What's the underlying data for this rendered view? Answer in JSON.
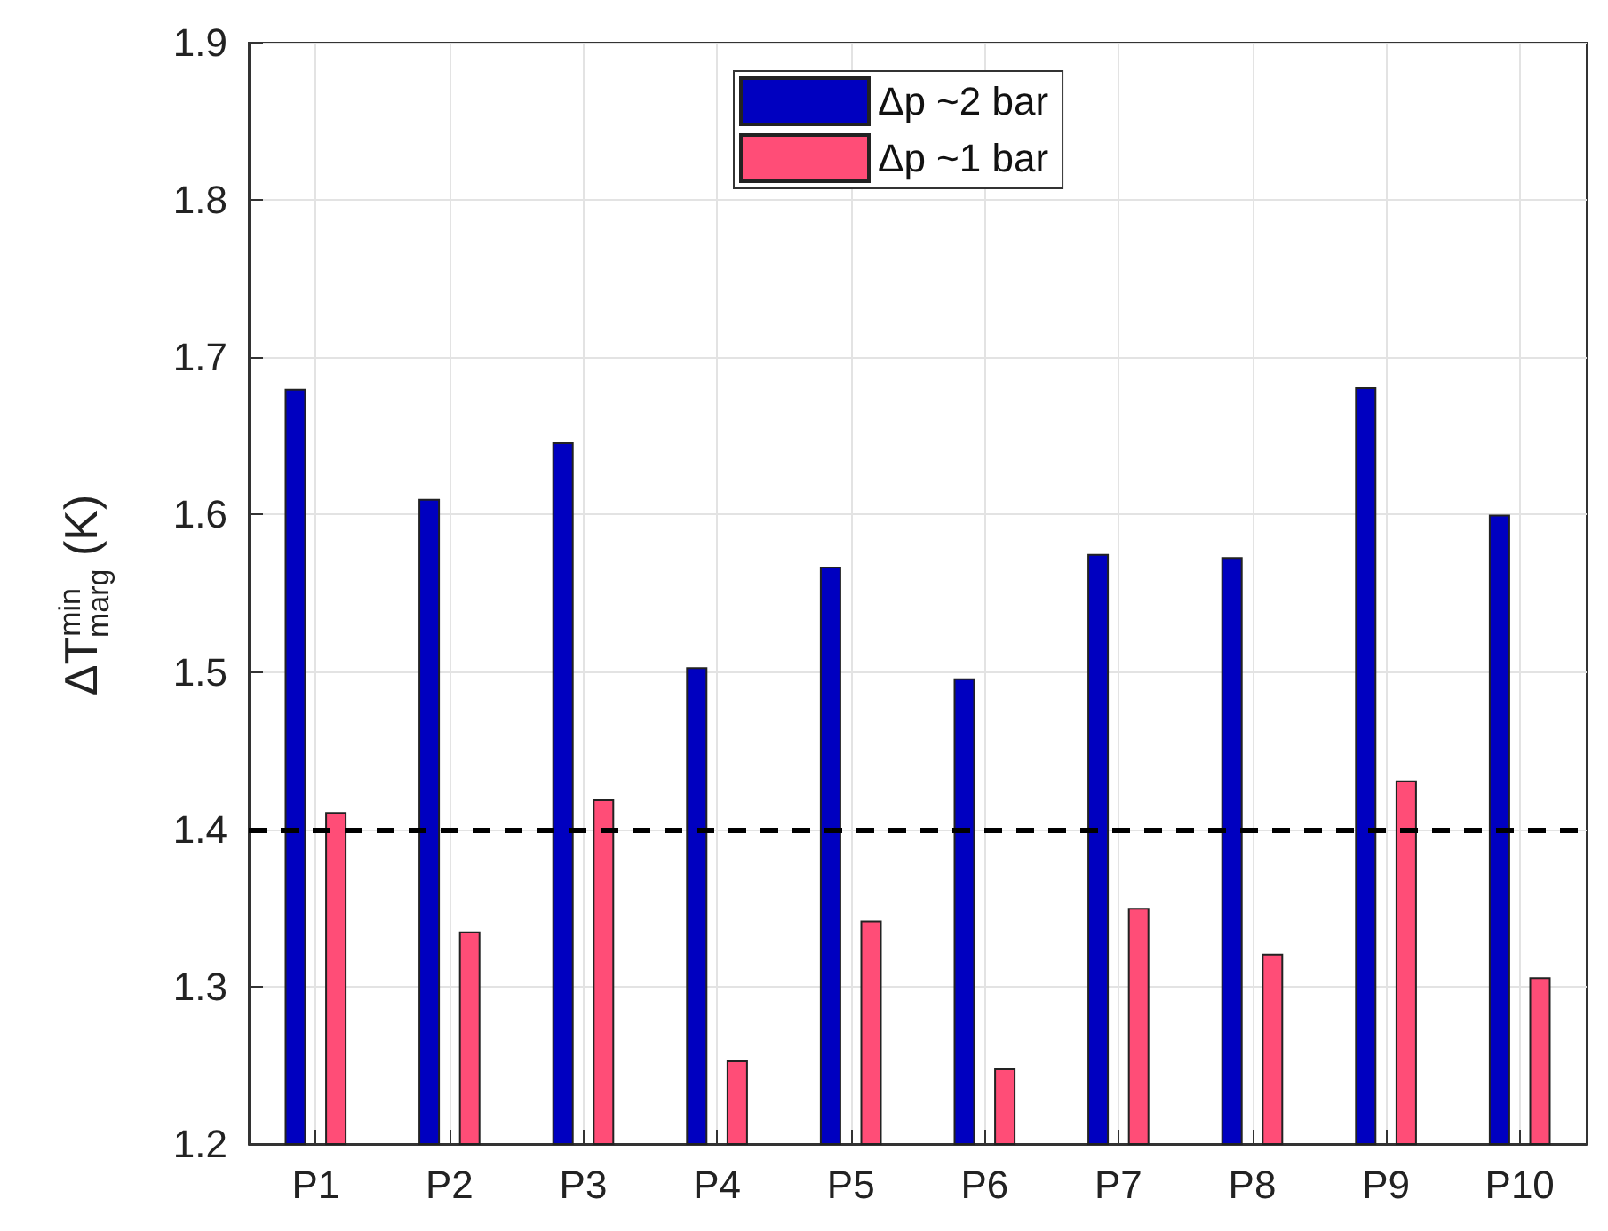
{
  "chart_data": {
    "type": "bar",
    "ylabel": "ΔT$^{min}$$_{marg}$ (K)",
    "categories": [
      "P1",
      "P2",
      "P3",
      "P4",
      "P5",
      "P6",
      "P7",
      "P8",
      "P9",
      "P10"
    ],
    "series": [
      {
        "name": "Δp ~2 bar",
        "color": "#0000c0",
        "values": [
          1.68,
          1.61,
          1.646,
          1.503,
          1.567,
          1.496,
          1.575,
          1.573,
          1.681,
          1.6
        ]
      },
      {
        "name": "Δp ~1 bar",
        "color": "#ff4d77",
        "values": [
          1.411,
          1.335,
          1.419,
          1.253,
          1.342,
          1.248,
          1.35,
          1.321,
          1.431,
          1.306
        ]
      }
    ],
    "ylim": [
      1.2,
      1.9
    ],
    "yticks": [
      1.2,
      1.3,
      1.4,
      1.5,
      1.6,
      1.7,
      1.8,
      1.9
    ],
    "ref_lines": [
      {
        "axis": "y",
        "value": 1.4,
        "color": "#000000",
        "line_style": "dashed"
      }
    ],
    "grid": true,
    "legend": "top"
  }
}
